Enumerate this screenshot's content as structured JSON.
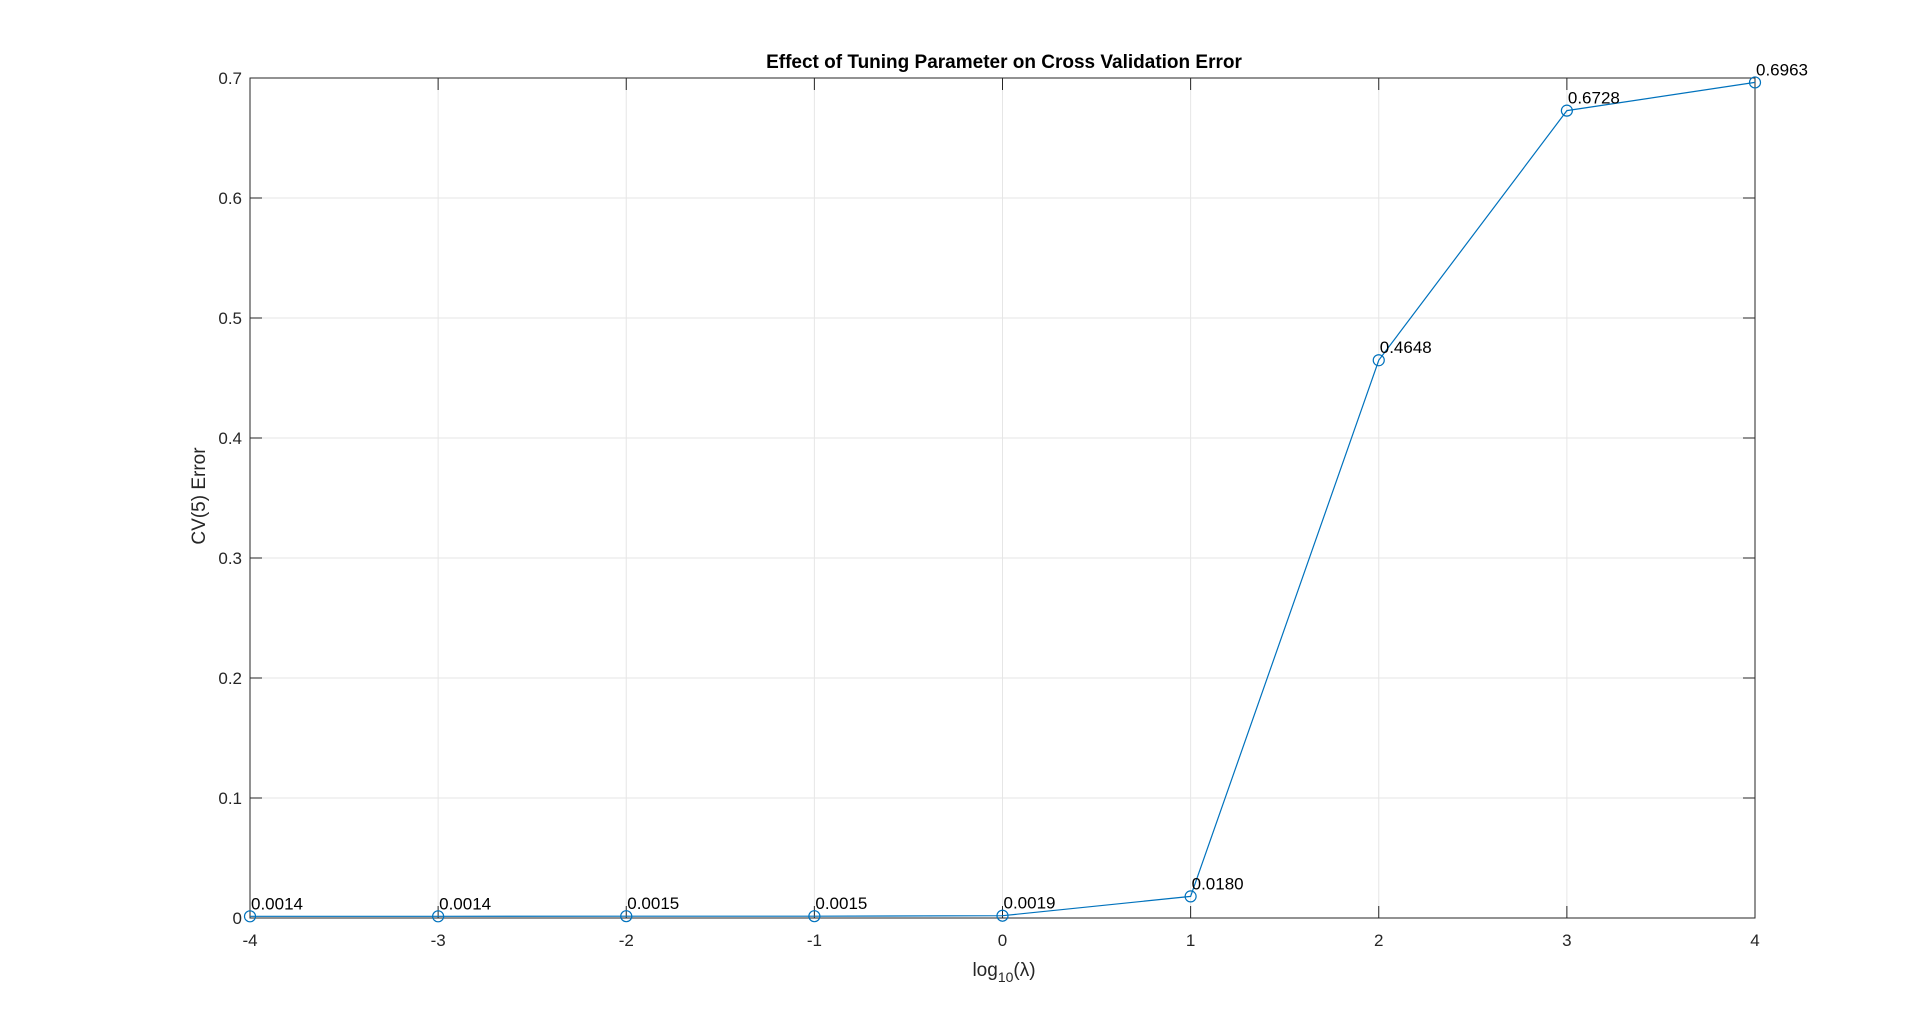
{
  "chart_data": {
    "type": "line",
    "title": "Effect of Tuning Parameter on Cross Validation Error",
    "xlabel": {
      "base": "log",
      "subscript": "10",
      "arg": "(λ)"
    },
    "ylabel": "CV(5) Error",
    "xlim": [
      -4,
      4
    ],
    "ylim": [
      0,
      0.7
    ],
    "x_ticks": [
      -4,
      -3,
      -2,
      -1,
      0,
      1,
      2,
      3,
      4
    ],
    "x_tick_labels": [
      "-4",
      "-3",
      "-2",
      "-1",
      "0",
      "1",
      "2",
      "3",
      "4"
    ],
    "y_ticks": [
      0,
      0.1,
      0.2,
      0.3,
      0.4,
      0.5,
      0.6,
      0.7
    ],
    "y_tick_labels": [
      "0",
      "0.1",
      "0.2",
      "0.3",
      "0.4",
      "0.5",
      "0.6",
      "0.7"
    ],
    "grid": true,
    "marker": "circle",
    "line_color": "#0072BD",
    "x": [
      -4,
      -3,
      -2,
      -1,
      0,
      1,
      2,
      3,
      4
    ],
    "values": [
      0.0014,
      0.0014,
      0.0015,
      0.0015,
      0.0019,
      0.018,
      0.4648,
      0.6728,
      0.6963
    ],
    "data_labels": [
      "0.0014",
      "0.0014",
      "0.0015",
      "0.0015",
      "0.0019",
      "0.0180",
      "0.4648",
      "0.6728",
      "0.6963"
    ]
  }
}
